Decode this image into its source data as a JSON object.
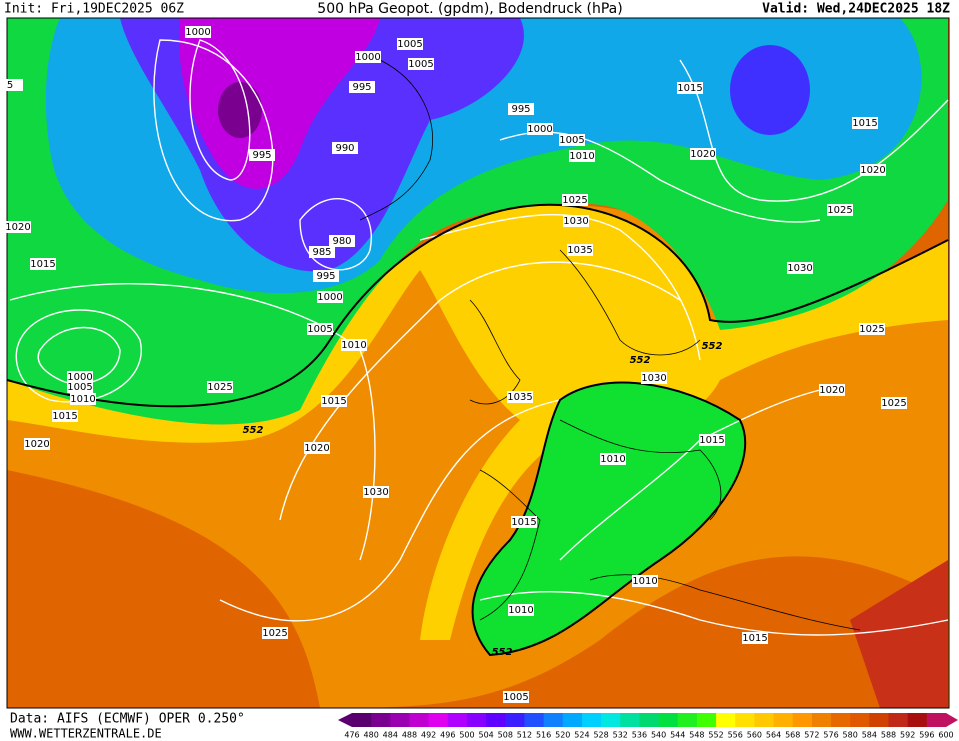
{
  "header": {
    "init": "Init: Fri,19DEC2025 06Z",
    "title": "500 hPa Geopot. (gpdm), Bodendruck (hPa)",
    "valid": "Valid: Wed,24DEC2025 18Z"
  },
  "footer": {
    "source": "Data: AIFS (ECMWF) OPER 0.250°",
    "site": "WWW.WETTERZENTRALE.DE"
  },
  "colorbar": {
    "labels": [
      476,
      480,
      484,
      488,
      492,
      496,
      500,
      504,
      508,
      512,
      516,
      520,
      524,
      528,
      532,
      536,
      540,
      544,
      548,
      552,
      556,
      560,
      564,
      568,
      572,
      576,
      580,
      584,
      588,
      592,
      596,
      600
    ],
    "colors": [
      "#5a006e",
      "#7a0090",
      "#9a00b0",
      "#c000d0",
      "#e000f0",
      "#b000ff",
      "#8800ff",
      "#6000ff",
      "#3a20ff",
      "#2050ff",
      "#1080ff",
      "#00a8ff",
      "#00d0ff",
      "#00e8e0",
      "#00e0a0",
      "#00d870",
      "#00e040",
      "#20f020",
      "#40ff00",
      "#ffff00",
      "#ffe000",
      "#ffc800",
      "#ffb000",
      "#ff9800",
      "#f08000",
      "#e86800",
      "#e05800",
      "#d04000",
      "#c02818",
      "#a81010",
      "#c01060"
    ]
  },
  "isobar_labels": [
    "1000",
    "1005",
    "1000",
    "1005",
    "995",
    "995",
    "990",
    "985",
    "980",
    "995",
    "1000",
    "1005",
    "1010",
    "995",
    "1000",
    "1005",
    "1010",
    "1015",
    "1015",
    "1020",
    "1020",
    "1025",
    "1030",
    "1035",
    "1025",
    "1030",
    "1025",
    "1020",
    "1015",
    "1000",
    "1005",
    "1010",
    "1015",
    "1020",
    "1025",
    "1015",
    "1020",
    "1030",
    "1035",
    "1030",
    "1020",
    "1025",
    "1015",
    "1010",
    "1015",
    "1010",
    "1010",
    "1015",
    "1025",
    "1005",
    "5"
  ],
  "height_labels": [
    "552",
    "552",
    "552",
    "552"
  ]
}
